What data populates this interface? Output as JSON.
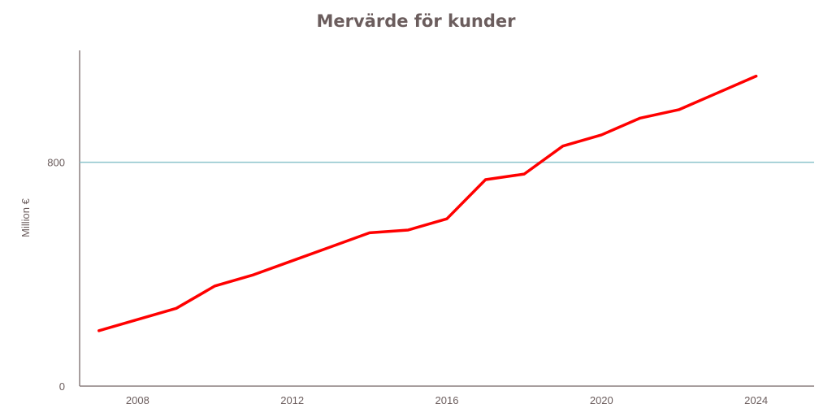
{
  "chart_data": {
    "type": "line",
    "title": "Mervärde för kunder",
    "ylabel": "Million €",
    "xlabel": "",
    "xlim": [
      2006.5,
      2025.5
    ],
    "ylim": [
      0,
      1200
    ],
    "x_ticks": [
      2008,
      2012,
      2016,
      2020,
      2024
    ],
    "y_ticks": [
      0,
      800
    ],
    "reference_line": {
      "y": 800,
      "color": "#8cc4cc"
    },
    "grid": false,
    "legend": "none",
    "series": [
      {
        "color": "#ff0000",
        "x": [
          2007,
          2008,
          2009,
          2010,
          2011,
          2012,
          2013,
          2014,
          2015,
          2016,
          2017,
          2018,
          2019,
          2020,
          2021,
          2022,
          2023,
          2024
        ],
        "y": [
          198,
          238,
          278,
          358,
          398,
          448,
          498,
          548,
          558,
          598,
          738,
          758,
          858,
          898,
          958,
          988,
          1048,
          1108
        ]
      }
    ]
  },
  "colors": {
    "title": "#6b5d5d",
    "axis": "#8a7e7e",
    "text": "#6b5d5d"
  }
}
